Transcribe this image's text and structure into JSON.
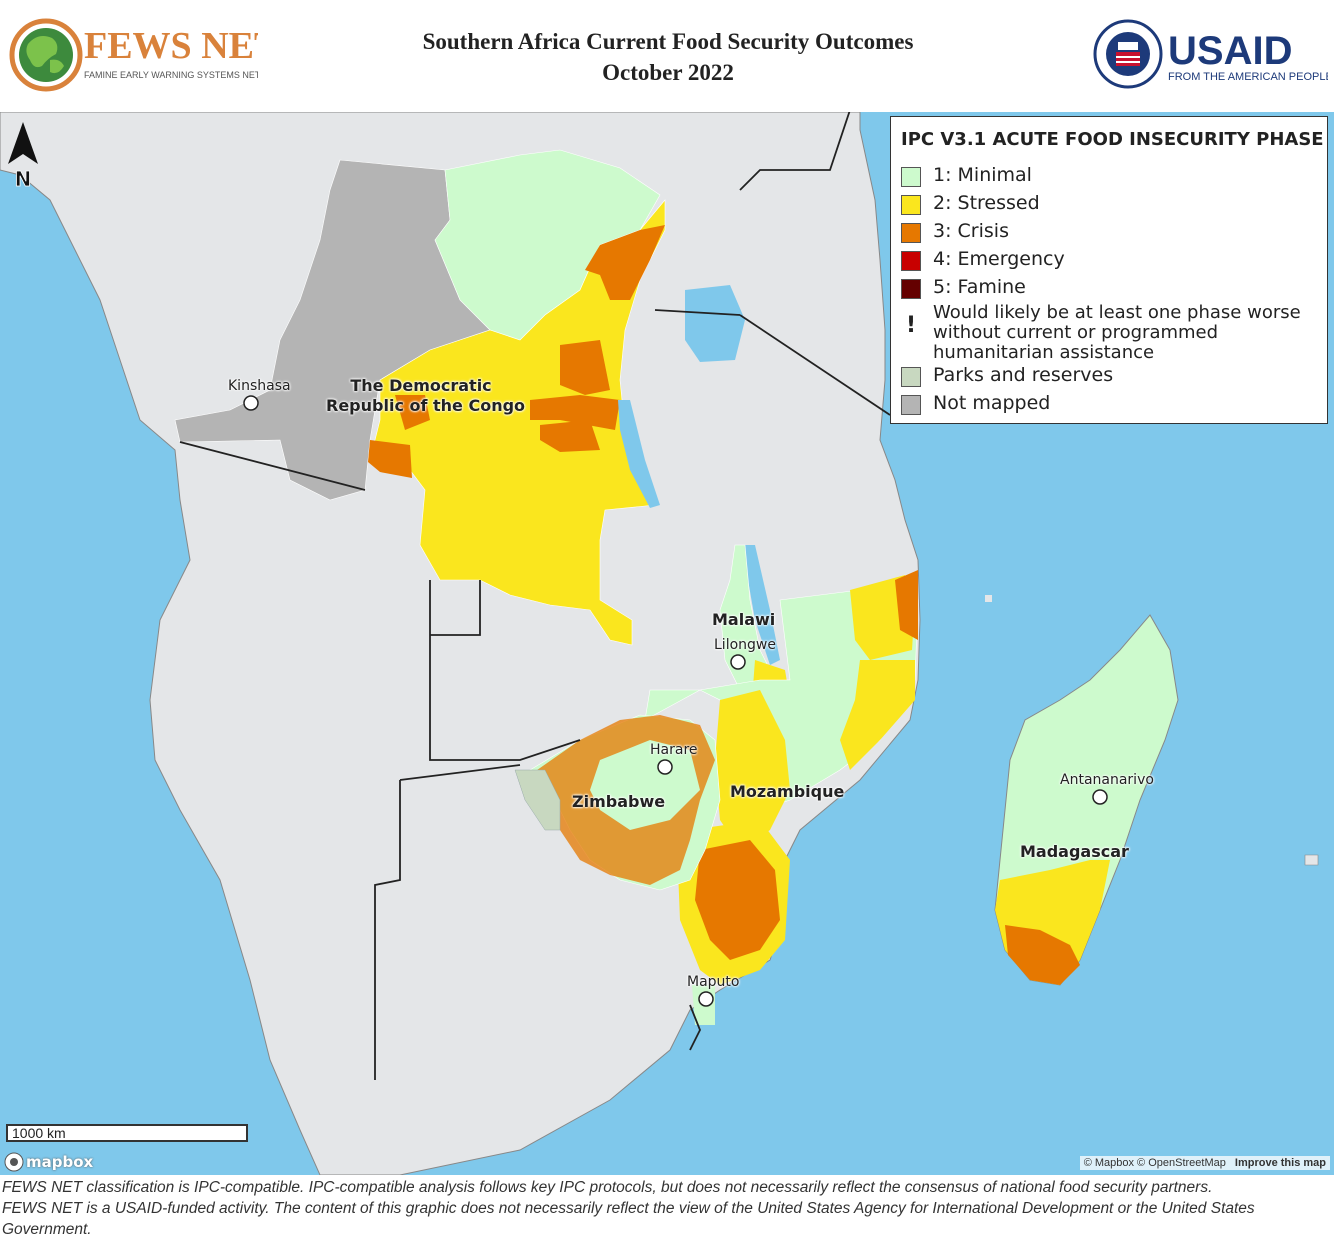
{
  "header": {
    "fews_logo_text": "FEWS NET",
    "fews_logo_subtitle": "FAMINE EARLY WARNING SYSTEMS NETWORK",
    "title_line1": "Southern Africa Current Food Security Outcomes",
    "title_line2": "October 2022",
    "usaid_logo_text": "USAID",
    "usaid_logo_subtitle": "FROM THE AMERICAN PEOPLE"
  },
  "map": {
    "north_label": "N",
    "labels": {
      "kinshasa": "Kinshasa",
      "drc_line1": "The Democratic",
      "drc_line2": "Republic of the Congo",
      "malawi": "Malawi",
      "lilongwe": "Lilongwe",
      "harare": "Harare",
      "zimbabwe": "Zimbabwe",
      "mozambique": "Mozambique",
      "antananarivo": "Antananarivo",
      "madagascar": "Madagascar",
      "maputo": "Maputo"
    },
    "scale_bar_label": "1000 km",
    "mapbox_logo": "mapbox",
    "attribution_text": "© Mapbox © OpenStreetMap",
    "attribution_link": "Improve this map",
    "colors": {
      "ocean": "#7fc8eb",
      "land": "#e4e6e8",
      "minimal": "#cdfacd",
      "stressed": "#fae61e",
      "crisis": "#e67800",
      "emergency": "#c80000",
      "famine": "#640000",
      "parks": "#c8d8c0",
      "not_mapped": "#b4b4b4"
    }
  },
  "legend": {
    "title": "IPC V3.1 ACUTE FOOD INSECURITY PHASE",
    "items": [
      {
        "label": "1: Minimal",
        "color": "#cdfacd"
      },
      {
        "label": "2: Stressed",
        "color": "#fae61e"
      },
      {
        "label": "3: Crisis",
        "color": "#e67800"
      },
      {
        "label": "4: Emergency",
        "color": "#c80000"
      },
      {
        "label": "5: Famine",
        "color": "#640000"
      }
    ],
    "assistance_symbol": "!",
    "assistance_line1": "Would likely be at least one phase worse",
    "assistance_line2": "without current or programmed",
    "assistance_line3": "humanitarian assistance",
    "parks_label": "Parks and reserves",
    "not_mapped_label": "Not mapped"
  },
  "footer": {
    "line1": "FEWS NET classification is IPC-compatible. IPC-compatible analysis follows key IPC protocols, but does not necessarily reflect the consensus of national food security partners.",
    "line2": "FEWS NET is a USAID-funded activity. The content of this graphic does not necessarily reflect the view of the United States Agency for International Development or the United States Government."
  }
}
